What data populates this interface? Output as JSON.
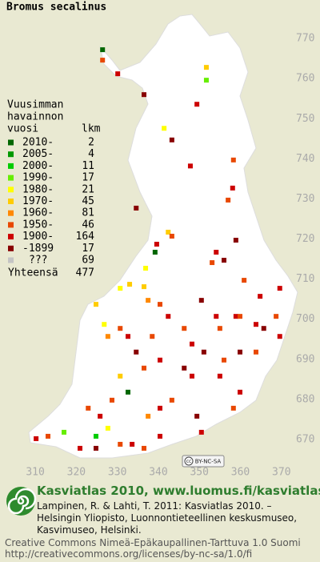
{
  "title": "Bromus secalinus",
  "legend": {
    "heading": [
      "Vuusimman",
      "havainnon",
      "vuosi"
    ],
    "count_heading": "lkm",
    "entries": [
      {
        "label": "2010-",
        "count": 2,
        "color": "#006600"
      },
      {
        "label": "2005-",
        "count": 4,
        "color": "#009900"
      },
      {
        "label": "2000-",
        "count": 11,
        "color": "#00cc00"
      },
      {
        "label": "1990-",
        "count": 17,
        "color": "#66ee00"
      },
      {
        "label": "1980-",
        "count": 21,
        "color": "#ffff00"
      },
      {
        "label": "1970-",
        "count": 45,
        "color": "#ffcc00"
      },
      {
        "label": "1960-",
        "count": 81,
        "color": "#ff8800"
      },
      {
        "label": "1950-",
        "count": 46,
        "color": "#e84800"
      },
      {
        "label": "1900-",
        "count": 164,
        "color": "#cc0000"
      },
      {
        "label": "-1899",
        "count": 17,
        "color": "#880000"
      },
      {
        "label": "???",
        "count": 69,
        "color": "#c4c4c4"
      }
    ],
    "total_label": "Yhteensä",
    "total": 477
  },
  "map": {
    "xlim": [
      301.4,
      379.4
    ],
    "ylim": [
      661.8,
      779.6
    ],
    "xticks": [
      310,
      320,
      330,
      340,
      350,
      360,
      370
    ],
    "yticks": [
      670,
      680,
      690,
      700,
      710,
      720,
      730,
      740,
      750,
      760,
      770
    ],
    "license": "BY-NC-SA",
    "squares": [
      [
        326.4,
        767.2,
        0
      ],
      [
        326.4,
        764.6,
        7
      ],
      [
        330.1,
        761.2,
        8
      ],
      [
        351.7,
        762.8,
        5
      ],
      [
        351.7,
        759.6,
        3
      ],
      [
        341.4,
        747.6,
        4
      ],
      [
        349.4,
        753.6,
        8
      ],
      [
        347.8,
        738.2,
        8
      ],
      [
        358.3,
        739.7,
        7
      ],
      [
        358.1,
        732.7,
        8
      ],
      [
        357,
        729.7,
        7
      ],
      [
        342.4,
        721.7,
        5
      ],
      [
        343.3,
        720.7,
        7
      ],
      [
        339.2,
        716.7,
        0
      ],
      [
        339.6,
        718.7,
        8
      ],
      [
        336.9,
        712.7,
        4
      ],
      [
        354.1,
        716.7,
        8
      ],
      [
        353.1,
        714.1,
        7
      ],
      [
        356,
        714.7,
        9
      ],
      [
        358.9,
        719.7,
        9
      ],
      [
        360.9,
        709.7,
        7
      ],
      [
        350.5,
        704.7,
        9
      ],
      [
        336.5,
        708.1,
        5
      ],
      [
        337.5,
        704.7,
        6
      ],
      [
        340.4,
        703.7,
        7
      ],
      [
        333,
        708.7,
        5
      ],
      [
        330.7,
        707.7,
        4
      ],
      [
        324.8,
        703.7,
        5
      ],
      [
        326.8,
        698.7,
        4
      ],
      [
        327.7,
        695.7,
        6
      ],
      [
        330.7,
        697.7,
        7
      ],
      [
        332.6,
        695.7,
        8
      ],
      [
        338.5,
        695.7,
        7
      ],
      [
        342.4,
        700.7,
        8
      ],
      [
        346.3,
        697.7,
        7
      ],
      [
        348.2,
        693.8,
        8
      ],
      [
        354.1,
        700.7,
        8
      ],
      [
        355,
        697.7,
        7
      ],
      [
        358.9,
        700.7,
        8
      ],
      [
        359.9,
        700.7,
        7
      ],
      [
        363.8,
        698.7,
        8
      ],
      [
        365.7,
        697.7,
        9
      ],
      [
        368.7,
        700.7,
        7
      ],
      [
        369.6,
        695.7,
        8
      ],
      [
        359.9,
        691.8,
        9
      ],
      [
        356,
        689.8,
        7
      ],
      [
        355,
        685.8,
        8
      ],
      [
        351.1,
        691.8,
        9
      ],
      [
        340.4,
        689.8,
        8
      ],
      [
        336.5,
        687.8,
        7
      ],
      [
        334.6,
        691.8,
        9
      ],
      [
        330.7,
        685.8,
        5
      ],
      [
        332.6,
        681.8,
        0
      ],
      [
        328.7,
        679.8,
        7
      ],
      [
        325.8,
        675.8,
        8
      ],
      [
        322.9,
        677.8,
        7
      ],
      [
        337.5,
        675.8,
        6
      ],
      [
        340.4,
        677.8,
        8
      ],
      [
        343.3,
        679.8,
        7
      ],
      [
        349.4,
        675.8,
        9
      ],
      [
        350.5,
        671.8,
        8
      ],
      [
        358.3,
        677.8,
        7
      ],
      [
        359.9,
        681.8,
        8
      ],
      [
        310.2,
        670.2,
        8
      ],
      [
        313.1,
        670.8,
        7
      ],
      [
        317,
        671.8,
        3
      ],
      [
        320.9,
        667.8,
        8
      ],
      [
        324.8,
        670.8,
        2
      ],
      [
        327.7,
        672.8,
        4
      ],
      [
        330.7,
        668.8,
        7
      ],
      [
        333.6,
        668.8,
        8
      ],
      [
        336.5,
        667.8,
        7
      ],
      [
        340.4,
        670.8,
        8
      ],
      [
        324.8,
        667.8,
        9
      ],
      [
        348.2,
        685.8,
        8
      ],
      [
        346.3,
        687.8,
        9
      ],
      [
        363.8,
        691.8,
        7
      ],
      [
        369.6,
        707.7,
        8
      ],
      [
        334.6,
        727.7,
        9
      ],
      [
        336.5,
        756,
        9
      ],
      [
        343.3,
        744.7,
        9
      ],
      [
        364.8,
        705.7,
        8
      ]
    ]
  },
  "footer": {
    "brand": "Kasviatlas 2010, www.luomus.fi/kasviatlas",
    "citation": [
      "Lampinen, R. & Lahti, T. 2011: Kasviatlas 2010. –",
      "Helsingin Yliopisto, Luonnontieteellinen keskusmuseo,",
      "Kasvimuseo, Helsinki."
    ],
    "license": [
      "Creative Commons Nimeä-Epäkaupallinen-Tarttuva 1.0 Suomi",
      "http://creativecommons.org/licenses/by-nc-sa/1.0/fi"
    ]
  }
}
